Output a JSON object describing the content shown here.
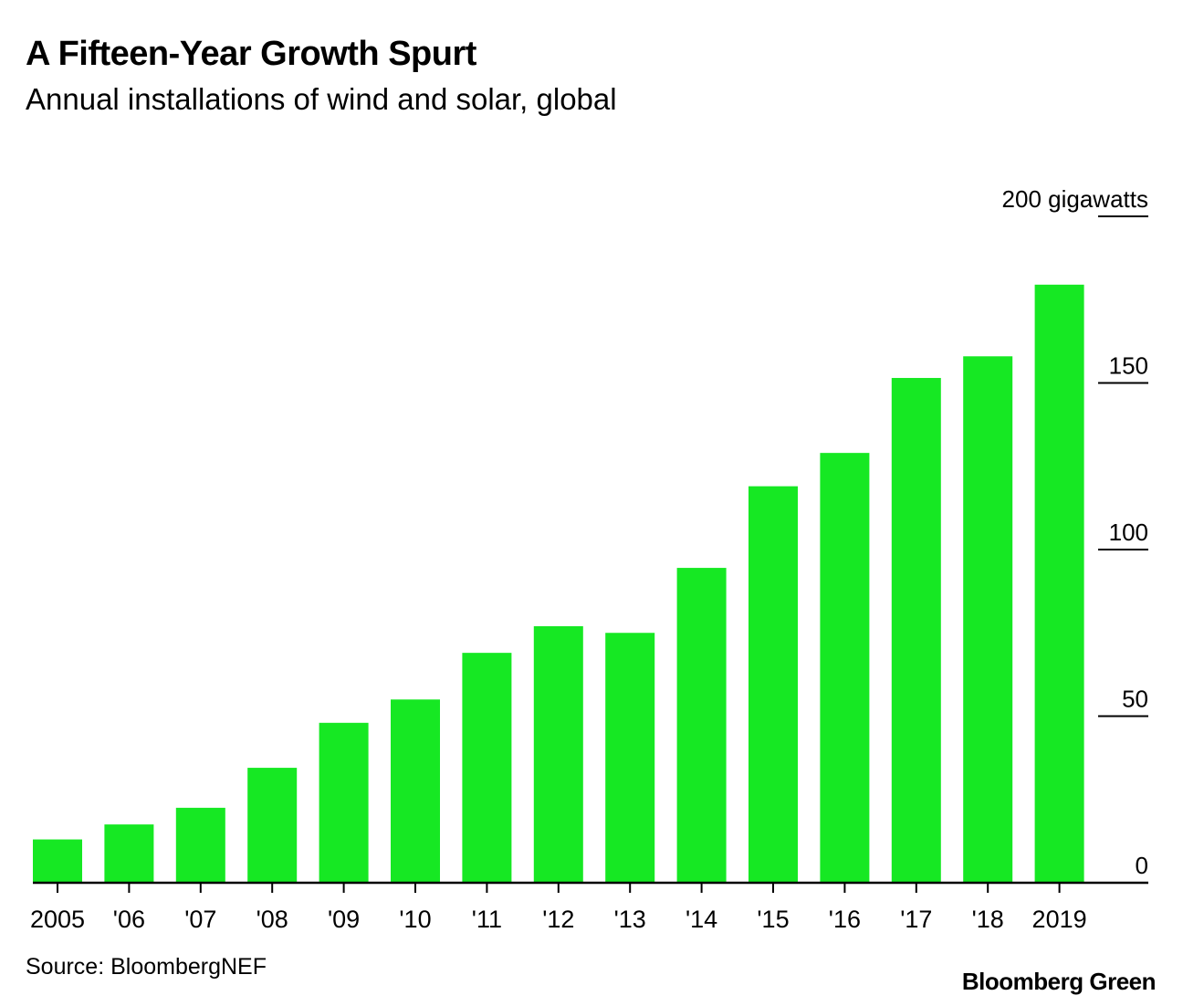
{
  "header": {
    "title": "A Fifteen-Year Growth Spurt",
    "subtitle": "Annual installations of wind and solar, global"
  },
  "footer": {
    "source": "Source: BloombergNEF",
    "brand": "Bloomberg Green"
  },
  "colors": {
    "bar": "#16E823",
    "axis": "#000000"
  },
  "chart_data": {
    "type": "bar",
    "title": "A Fifteen-Year Growth Spurt",
    "subtitle": "Annual installations of wind and solar, global",
    "xlabel": "",
    "ylabel": "gigawatts",
    "y_unit_label": "200 gigawatts",
    "ylim": [
      0,
      200
    ],
    "yticks": [
      0,
      50,
      100,
      150,
      200
    ],
    "ytick_labels": [
      "0",
      "50",
      "100",
      "150",
      "200 gigawatts"
    ],
    "y_axis_position": "right",
    "grid": false,
    "categories": [
      "2005",
      "'06",
      "'07",
      "'08",
      "'09",
      "'10",
      "'11",
      "'12",
      "'13",
      "'14",
      "'15",
      "'16",
      "'17",
      "'18",
      "2019"
    ],
    "values": [
      13,
      17.5,
      22.5,
      34.5,
      48,
      55,
      69,
      77,
      75,
      94.5,
      119,
      129,
      151.5,
      158,
      179.5
    ]
  }
}
